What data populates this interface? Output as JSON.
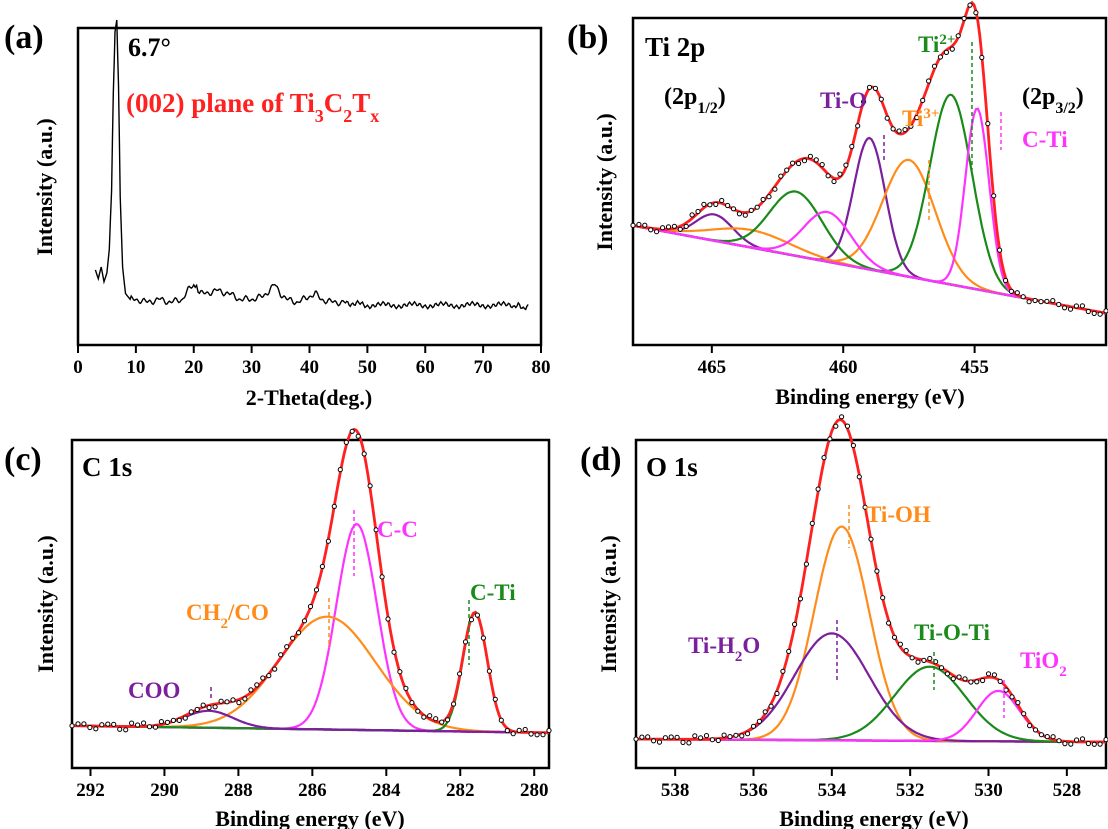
{
  "chart_data": [
    {
      "panel": "(a)",
      "type": "line",
      "title": "",
      "xlabel": "2-Theta(deg.)",
      "ylabel": "Intensity (a.u.)",
      "xlim": [
        0,
        80
      ],
      "ylim": [
        0,
        1
      ],
      "xticks": [
        0,
        10,
        20,
        30,
        40,
        50,
        60,
        70,
        80
      ],
      "show_y_ticks": false,
      "series": [
        {
          "color": "#000000",
          "x": [
            3,
            3.5,
            4,
            4.5,
            5,
            5.4,
            5.8,
            6.1,
            6.4,
            6.7,
            7.0,
            7.3,
            7.7,
            8.2,
            9,
            10,
            12,
            14,
            16,
            18,
            19,
            20,
            20.5,
            21,
            22,
            24,
            26,
            28,
            30,
            32,
            33,
            34,
            35,
            36,
            38,
            40,
            41,
            42,
            44,
            46,
            50,
            55,
            60,
            65,
            70,
            75,
            78
          ],
          "y": [
            0.15,
            0.12,
            0.16,
            0.11,
            0.14,
            0.22,
            0.42,
            0.75,
            0.96,
            1.0,
            0.78,
            0.4,
            0.16,
            0.07,
            0.05,
            0.05,
            0.04,
            0.05,
            0.04,
            0.05,
            0.08,
            0.1,
            0.09,
            0.07,
            0.07,
            0.08,
            0.07,
            0.05,
            0.05,
            0.06,
            0.08,
            0.1,
            0.07,
            0.05,
            0.04,
            0.06,
            0.07,
            0.05,
            0.04,
            0.04,
            0.03,
            0.03,
            0.03,
            0.03,
            0.03,
            0.03,
            0.02
          ]
        }
      ],
      "annotations": {
        "peak": "6.7°",
        "plane_prefix": "(002) plane of Ti",
        "sub1": "3",
        "mid": "C",
        "sub2": "2",
        "mid2": "T",
        "sub3": "x"
      }
    },
    {
      "panel": "(b)",
      "type": "line",
      "title": "Ti 2p",
      "xlabel": "Binding energy (eV)",
      "ylabel": "Intensity (a.u.)",
      "xlim": [
        468,
        450
      ],
      "ylim": [
        0,
        1
      ],
      "xticks": [
        465,
        460,
        455
      ],
      "show_y_ticks": false,
      "series": [
        {
          "name": "Ti-O",
          "color": "#7b1f9c",
          "center": 459.0,
          "height": 0.45,
          "sigma": 0.6
        },
        {
          "name": "Ti-O",
          "color": "#7b1f9c",
          "center": 464.9,
          "height": 0.09,
          "sigma": 0.7
        },
        {
          "name": "Ti3+",
          "color": "#ff8c1a",
          "center": 457.5,
          "height": 0.4,
          "sigma": 1.0
        },
        {
          "name": "Ti3+",
          "color": "#ff8c1a",
          "center": 463.5,
          "height": 0.06,
          "sigma": 1.5
        },
        {
          "name": "Ti2+",
          "color": "#1a8a1a",
          "center": 455.9,
          "height": 0.65,
          "sigma": 0.8
        },
        {
          "name": "Ti2+",
          "color": "#1a8a1a",
          "center": 461.8,
          "height": 0.22,
          "sigma": 1.0
        },
        {
          "name": "C-Ti",
          "color": "#ff33ff",
          "center": 454.9,
          "height": 0.62,
          "sigma": 0.45
        },
        {
          "name": "C-Ti",
          "color": "#ff33ff",
          "center": 460.6,
          "height": 0.17,
          "sigma": 0.9
        }
      ],
      "background": {
        "color": "#1f3fd6",
        "left": 0.33,
        "right": 0.03
      },
      "envelope_color": "#ff2020",
      "annotations": {
        "left_a": "(2p",
        "left_sub": "1/2",
        "left_b": ")",
        "right_a": "(2p",
        "right_sub": "3/2",
        "right_b": ")",
        "ti_o": "Ti-O",
        "ti3_a": "Ti",
        "ti3_sup": "3+",
        "ti2_a": "Ti",
        "ti2_sup": "2+",
        "c_ti": "C-Ti"
      }
    },
    {
      "panel": "(c)",
      "type": "line",
      "title": "C 1s",
      "xlabel": "Binding energy (eV)",
      "ylabel": "Intensity (a.u.)",
      "xlim": [
        292.5,
        279.6
      ],
      "ylim": [
        0,
        1
      ],
      "xticks": [
        292,
        290,
        288,
        286,
        284,
        282,
        280
      ],
      "show_y_ticks": false,
      "series": [
        {
          "name": "C-C",
          "color": "#ff33ff",
          "center": 284.8,
          "height": 0.73,
          "sigma": 0.55
        },
        {
          "name": "CH2/CO",
          "color": "#ff8c1a",
          "center": 285.6,
          "height": 0.4,
          "sigma": 1.3
        },
        {
          "name": "C-Ti",
          "color": "#1a8a1a",
          "center": 281.6,
          "height": 0.42,
          "sigma": 0.33
        },
        {
          "name": "COO",
          "color": "#7b1f9c",
          "center": 288.8,
          "height": 0.06,
          "sigma": 0.65
        }
      ],
      "background": {
        "color": "#7b1f9c",
        "left": 0.04,
        "right": 0.015
      },
      "envelope_color": "#ff2020",
      "annotations": {
        "cc": "C-C",
        "ch_a": "CH",
        "ch_sub": "2",
        "ch_b": "/CO",
        "cti": "C-Ti",
        "coo": "COO"
      }
    },
    {
      "panel": "(d)",
      "type": "line",
      "title": "O 1s",
      "xlabel": "Binding energy (eV)",
      "ylabel": "Intensity (a.u.)",
      "xlim": [
        539,
        527
      ],
      "ylim": [
        0,
        1
      ],
      "xticks": [
        538,
        536,
        534,
        532,
        530,
        528
      ],
      "show_y_ticks": false,
      "series": [
        {
          "name": "Ti-OH",
          "color": "#ff8c1a",
          "center": 533.75,
          "height": 0.72,
          "sigma": 0.7
        },
        {
          "name": "Ti-H2O",
          "color": "#7b1f9c",
          "center": 534.0,
          "height": 0.36,
          "sigma": 0.95
        },
        {
          "name": "Ti-O-Ti",
          "color": "#1a8a1a",
          "center": 531.5,
          "height": 0.25,
          "sigma": 0.9
        },
        {
          "name": "TiO2",
          "color": "#ff33ff",
          "center": 529.75,
          "height": 0.17,
          "sigma": 0.55
        }
      ],
      "background": {
        "color": "#7b1f9c",
        "left": 0.02,
        "right": 0.01
      },
      "envelope_color": "#ff2020",
      "annotations": {
        "tioh": "Ti-OH",
        "tih2o_a": "Ti-H",
        "tih2o_sub": "2",
        "tih2o_b": "O",
        "tioti": "Ti-O-Ti",
        "tio2_a": "TiO",
        "tio2_sub": "2"
      }
    }
  ]
}
